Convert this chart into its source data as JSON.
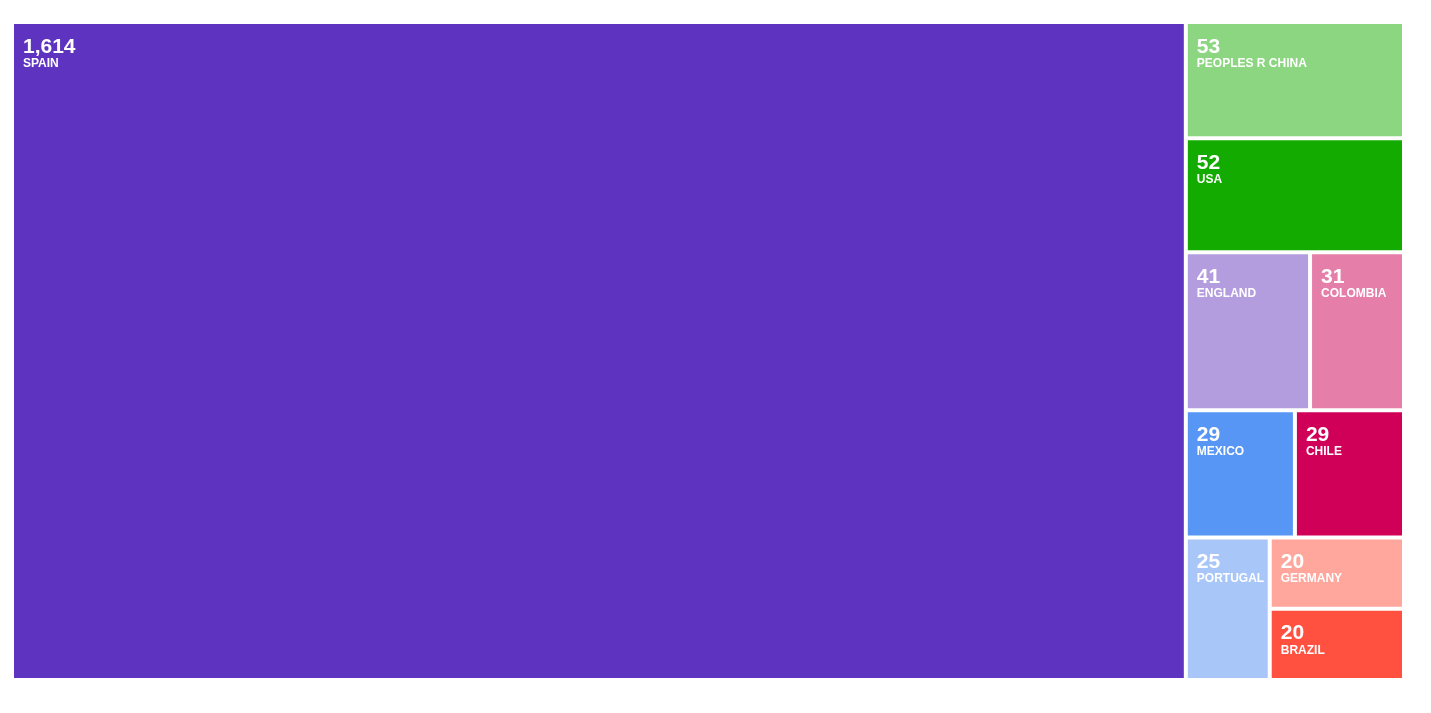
{
  "chart_data": {
    "type": "other",
    "categories": [
      "SPAIN",
      "PEOPLES R CHINA",
      "USA",
      "ENGLAND",
      "COLOMBIA",
      "CHILE",
      "MEXICO",
      "PORTUGAL",
      "BRAZIL",
      "GERMANY"
    ],
    "values": [
      1614,
      53,
      52,
      41,
      31,
      29,
      29,
      25,
      20,
      20
    ],
    "colors": [
      "#5e33bf",
      "#8cd681",
      "#14ab00",
      "#b39ddf",
      "#e57ea9",
      "#d00058",
      "#5796f4",
      "#a9c6f8",
      "#ff5040",
      "#ffa69d"
    ],
    "value_labels": [
      "1,614",
      "53",
      "52",
      "41",
      "31",
      "29",
      "29",
      "25",
      "20",
      "20"
    ]
  }
}
